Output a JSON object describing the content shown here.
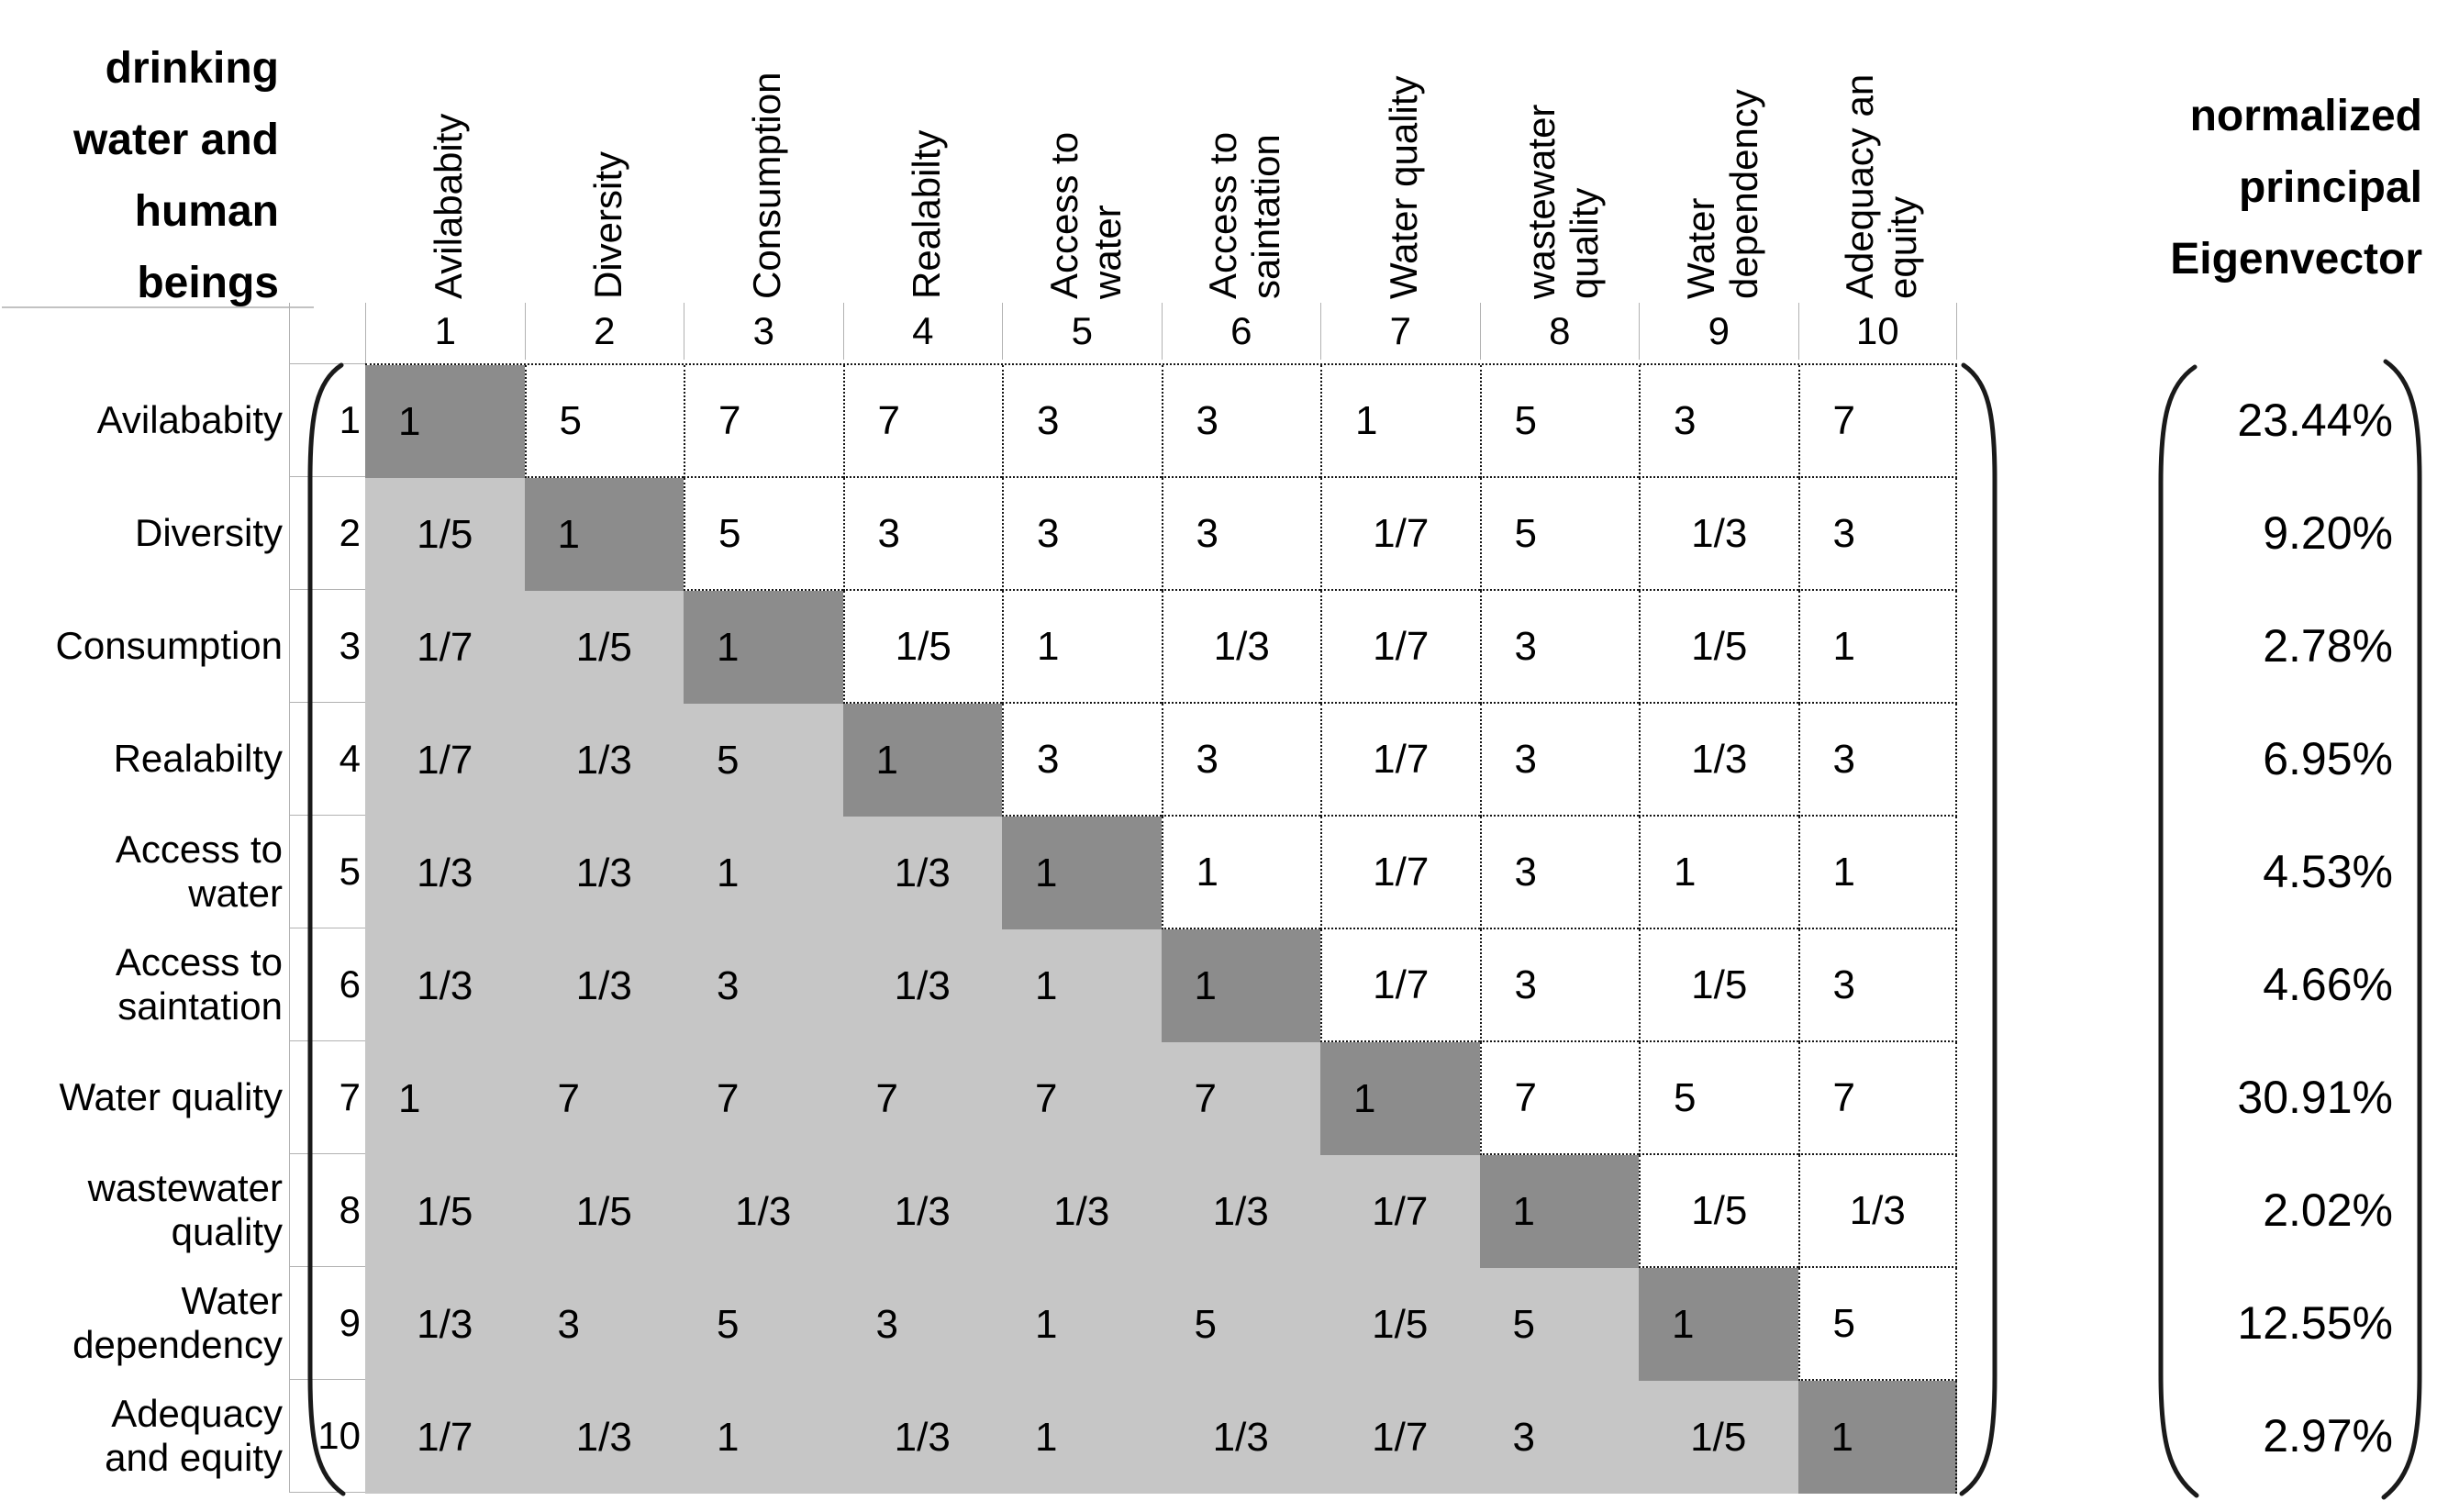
{
  "title": {
    "text": "drinking water and human beings",
    "lines": "drinking\nwater and\nhuman\nbeings"
  },
  "eigen_header": {
    "text": "normalized principal Eigenvector",
    "lines": "normalized\nprincipal\nEigenvector"
  },
  "chart_data": {
    "type": "table",
    "title": "drinking water and human beings",
    "description": "AHP pairwise comparison matrix with normalized principal eigenvector",
    "col_indices": [
      "1",
      "2",
      "3",
      "4",
      "5",
      "6",
      "7",
      "8",
      "9",
      "10"
    ],
    "row_indices": [
      "1",
      "2",
      "3",
      "4",
      "5",
      "6",
      "7",
      "8",
      "9",
      "10"
    ],
    "col_labels": [
      "Avilababity",
      "Diversity",
      "Consumption",
      "Realabilty",
      "Access to water",
      "Access to saintation",
      "Water quality",
      "wastewater quality",
      "Water dependency",
      "Adequacy an equity"
    ],
    "row_labels": [
      "Avilababity",
      "Diversity",
      "Consumption",
      "Realabilty",
      "Access to water",
      "Access to saintation",
      "Water quality",
      "wastewater quality",
      "Water dependency",
      "Adequacy and equity"
    ],
    "col_label_lines": [
      "Avilababity",
      "Diversity",
      "Consumption",
      "Realabilty",
      "Access to\nwater",
      "Access to\nsaintation",
      "Water quality",
      "wastewater\nquality",
      "Water\ndependency",
      "Adequacy an\nequity"
    ],
    "row_label_lines": [
      "Avilababity",
      "Diversity",
      "Consumption",
      "Realabilty",
      "Access to\nwater",
      "Access to\nsaintation",
      "Water quality",
      "wastewater\nquality",
      "Water\ndependency",
      "Adequacy\nand equity"
    ],
    "matrix": [
      [
        "1",
        "5",
        "7",
        "7",
        "3",
        "3",
        "1",
        "5",
        "3",
        "7"
      ],
      [
        "1/5",
        "1",
        "5",
        "3",
        "3",
        "3",
        "1/7",
        "5",
        "1/3",
        "3"
      ],
      [
        "1/7",
        "1/5",
        "1",
        "1/5",
        "1",
        "1/3",
        "1/7",
        "3",
        "1/5",
        "1"
      ],
      [
        "1/7",
        "1/3",
        "5",
        "1",
        "3",
        "3",
        "1/7",
        "3",
        "1/3",
        "3"
      ],
      [
        "1/3",
        "1/3",
        "1",
        "1/3",
        "1",
        "1",
        "1/7",
        "3",
        "1",
        "1"
      ],
      [
        "1/3",
        "1/3",
        "3",
        "1/3",
        "1",
        "1",
        "1/7",
        "3",
        "1/5",
        "3"
      ],
      [
        "1",
        "7",
        "7",
        "7",
        "7",
        "7",
        "1",
        "7",
        "5",
        "7"
      ],
      [
        "1/5",
        "1/5",
        "1/3",
        "1/3",
        "1/3",
        "1/3",
        "1/7",
        "1",
        "1/5",
        "1/3"
      ],
      [
        "1/3",
        "3",
        "5",
        "3",
        "1",
        "5",
        "1/5",
        "5",
        "1",
        "5"
      ],
      [
        "1/7",
        "1/3",
        "1",
        "1/3",
        "1",
        "1/3",
        "1/7",
        "3",
        "1/5",
        "1"
      ]
    ],
    "eigenvector_label": "normalized principal Eigenvector",
    "eigenvector": [
      "23.44%",
      "9.20%",
      "2.78%",
      "6.95%",
      "4.53%",
      "4.66%",
      "30.91%",
      "2.02%",
      "12.55%",
      "2.97%"
    ]
  },
  "colors": {
    "diagonal_cell": "#8c8c8c",
    "lower_triangle_cell": "#c6c6c6",
    "grid_line": "#b2b2b2",
    "dotted_border": "#161616",
    "text": "#000000"
  }
}
